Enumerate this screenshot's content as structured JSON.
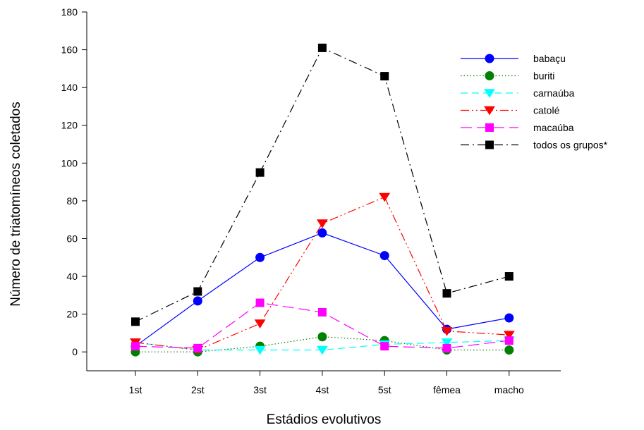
{
  "chart_data": {
    "type": "line",
    "title": "",
    "xlabel": "Estádios evolutivos",
    "ylabel": "Número de triatomíneos coletados",
    "categories": [
      "1st",
      "2st",
      "3st",
      "4st",
      "5st",
      "fêmea",
      "macho"
    ],
    "ylim": [
      -10,
      180
    ],
    "yticks": [
      0,
      20,
      40,
      60,
      80,
      100,
      120,
      140,
      160,
      180
    ],
    "grid": false,
    "legend_position": "top-right",
    "series": [
      {
        "name": "babaçu",
        "values": [
          3,
          27,
          50,
          63,
          51,
          12,
          18
        ],
        "color": "#0000ff",
        "marker": "circle",
        "dash": "solid"
      },
      {
        "name": "buriti",
        "values": [
          0,
          0,
          3,
          8,
          6,
          1,
          1
        ],
        "color": "#008000",
        "marker": "circle",
        "dash": "dotted"
      },
      {
        "name": "carnaúba",
        "values": [
          5,
          1,
          1,
          1,
          4,
          5,
          6
        ],
        "color": "#00ffff",
        "marker": "triangle-down",
        "dash": "dashed"
      },
      {
        "name": "catolé",
        "values": [
          5,
          1,
          15,
          68,
          82,
          11,
          9
        ],
        "color": "#ff0000",
        "marker": "triangle-down",
        "dash": "dash-dot-dot"
      },
      {
        "name": "macaúba",
        "values": [
          3,
          2,
          26,
          21,
          3,
          2,
          6
        ],
        "color": "#ff00ff",
        "marker": "square",
        "dash": "long-dash"
      },
      {
        "name": "todos os grupos*",
        "values": [
          16,
          32,
          95,
          161,
          146,
          31,
          40
        ],
        "color": "#000000",
        "marker": "square",
        "dash": "dash-dot"
      }
    ]
  }
}
